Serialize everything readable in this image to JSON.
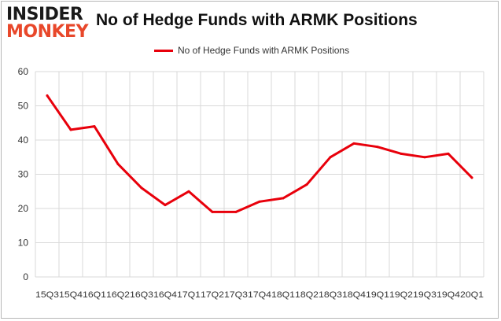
{
  "branding": {
    "logo_line1": "INSIDER",
    "logo_line2": "MONKEY"
  },
  "chart_data": {
    "type": "line",
    "title": "No of Hedge Funds with ARMK Positions",
    "xlabel": "",
    "ylabel": "",
    "categories": [
      "15Q3",
      "15Q4",
      "16Q1",
      "16Q2",
      "16Q3",
      "16Q4",
      "17Q1",
      "17Q2",
      "17Q3",
      "17Q4",
      "18Q1",
      "18Q2",
      "18Q3",
      "18Q4",
      "19Q1",
      "19Q2",
      "19Q3",
      "19Q4",
      "20Q1"
    ],
    "series": [
      {
        "name": "No of Hedge Funds with ARMK Positions",
        "color": "#e8000b",
        "values": [
          53,
          43,
          44,
          33,
          26,
          21,
          25,
          19,
          19,
          22,
          23,
          27,
          35,
          39,
          38,
          36,
          35,
          36,
          29
        ]
      }
    ],
    "ylim": [
      0,
      60
    ],
    "yticks": [
      0,
      10,
      20,
      30,
      40,
      50,
      60
    ],
    "grid": true,
    "legend_position": "top-center"
  }
}
